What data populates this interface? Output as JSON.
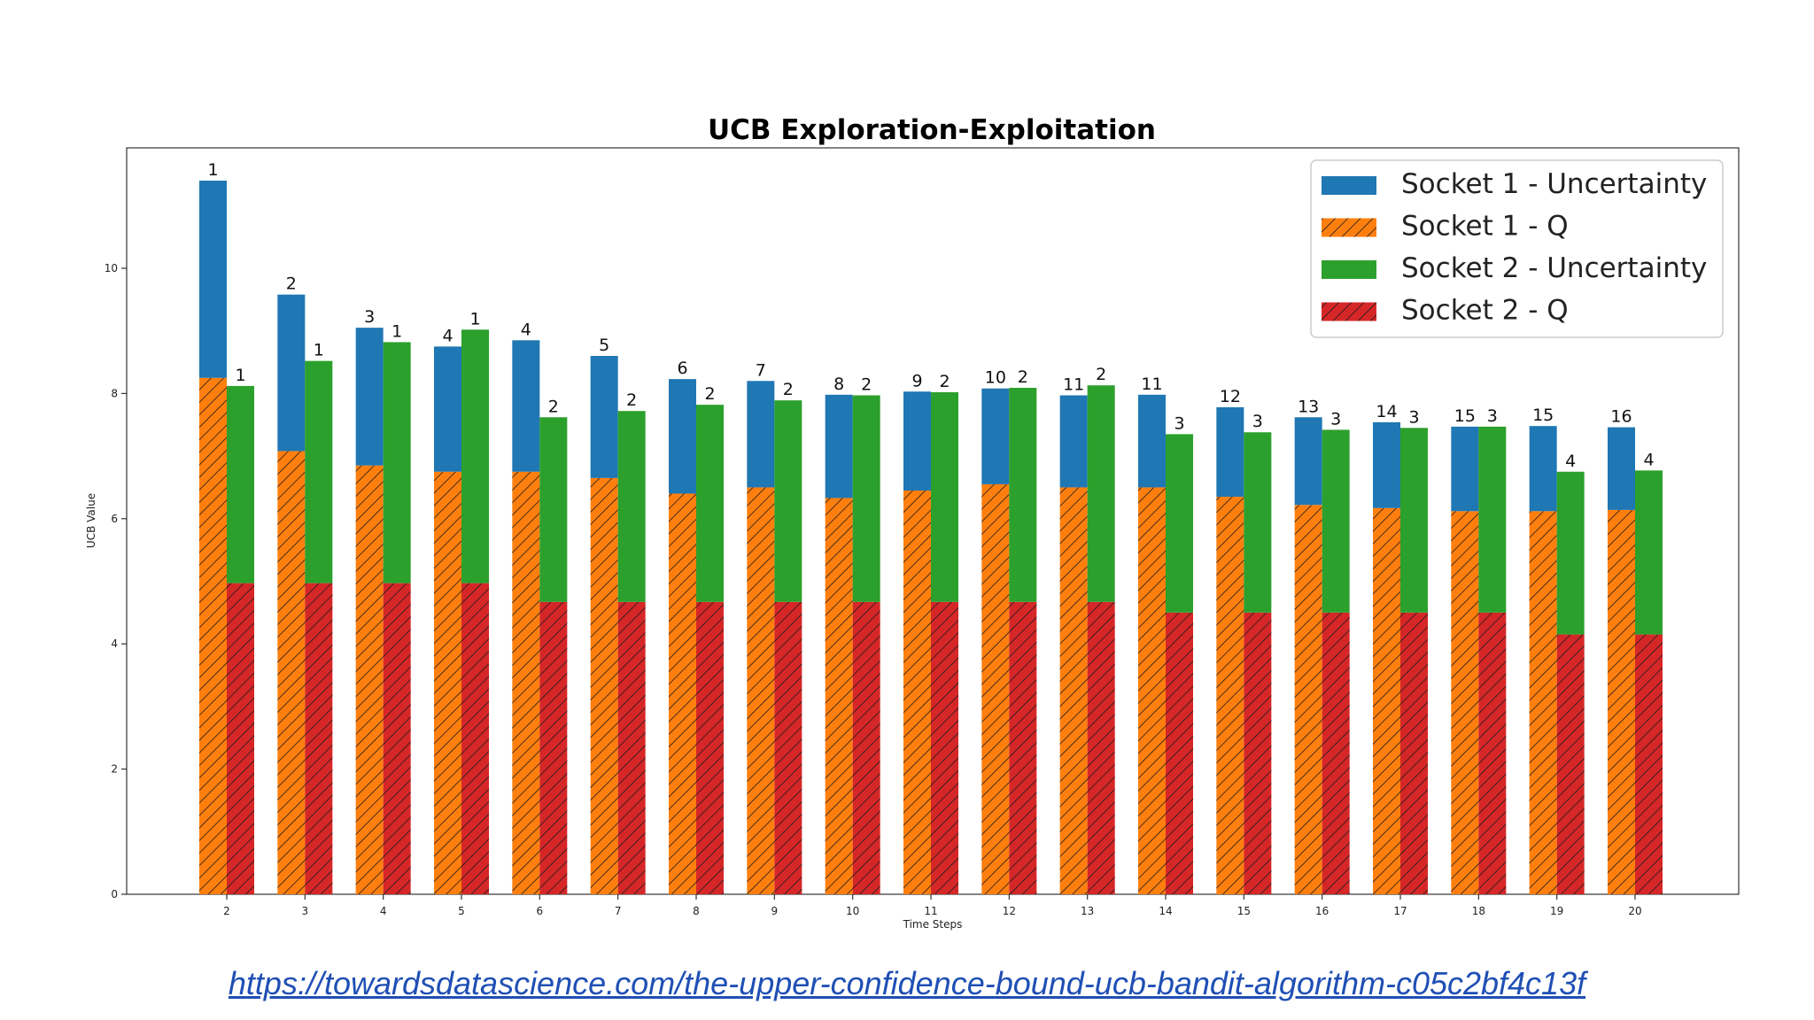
{
  "chart_data": {
    "type": "bar",
    "title": "UCB Exploration-Exploitation",
    "xlabel": "Time Steps",
    "ylabel": "UCB Value",
    "categories": [
      "2",
      "3",
      "4",
      "5",
      "6",
      "7",
      "8",
      "9",
      "10",
      "11",
      "12",
      "13",
      "14",
      "15",
      "16",
      "17",
      "18",
      "19",
      "20"
    ],
    "ylim": [
      0,
      12
    ],
    "yticks": [
      "0",
      "2",
      "4",
      "6",
      "8",
      "10"
    ],
    "legend_position": "top-right",
    "series": [
      {
        "name": "Socket 1 - Uncertainty",
        "color": "#1f77b4",
        "values": [
          3.15,
          2.5,
          2.2,
          2.0,
          2.1,
          1.95,
          1.83,
          1.7,
          1.65,
          1.58,
          1.53,
          1.47,
          1.48,
          1.43,
          1.4,
          1.37,
          1.35,
          1.36,
          1.32
        ]
      },
      {
        "name": "Socket 1 - Q",
        "color": "#ff7f0e",
        "hatch": true,
        "values": [
          8.25,
          7.08,
          6.85,
          6.75,
          6.75,
          6.65,
          6.4,
          6.5,
          6.33,
          6.45,
          6.55,
          6.5,
          6.5,
          6.35,
          6.22,
          6.17,
          6.12,
          6.12,
          6.14
        ]
      },
      {
        "name": "Socket 2 - Uncertainty",
        "color": "#2ca02c",
        "values": [
          3.15,
          3.55,
          3.85,
          4.05,
          2.95,
          3.05,
          3.15,
          3.22,
          3.3,
          3.35,
          3.42,
          3.46,
          2.85,
          2.88,
          2.92,
          2.95,
          2.97,
          2.6,
          2.62
        ]
      },
      {
        "name": "Socket 2 - Q",
        "color": "#d62728",
        "hatch": true,
        "values": [
          4.97,
          4.97,
          4.97,
          4.97,
          4.67,
          4.67,
          4.67,
          4.67,
          4.67,
          4.67,
          4.67,
          4.67,
          4.5,
          4.5,
          4.5,
          4.5,
          4.5,
          4.15,
          4.15
        ]
      }
    ],
    "bar_labels": {
      "socket1": [
        "1",
        "2",
        "3",
        "4",
        "4",
        "5",
        "6",
        "7",
        "8",
        "9",
        "10",
        "11",
        "11",
        "12",
        "13",
        "14",
        "15",
        "15",
        "16"
      ],
      "socket2": [
        "1",
        "1",
        "1",
        "1",
        "2",
        "2",
        "2",
        "2",
        "2",
        "2",
        "2",
        "2",
        "3",
        "3",
        "3",
        "3",
        "3",
        "4",
        "4"
      ]
    }
  },
  "source_link": "https://towardsdatascience.com/the-upper-confidence-bound-ucb-bandit-algorithm-c05c2bf4c13f"
}
